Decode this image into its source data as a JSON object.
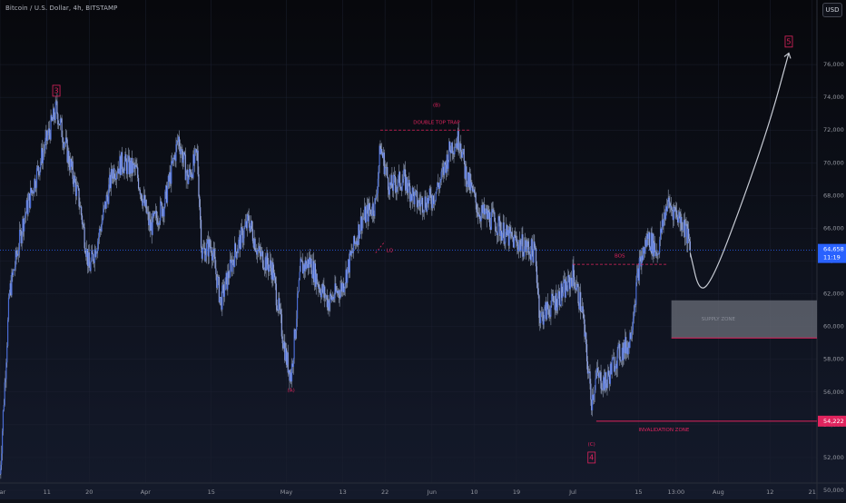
{
  "header": {
    "symbol_title": "Bitcoin / U.S. Dollar, 4h, BITSTAMP",
    "currency_button": "USD"
  },
  "price_labels": {
    "last_price": "64,658",
    "countdown": "11:19",
    "invalidation_price": "54,222"
  },
  "colors": {
    "background": "#0f1119",
    "candle": "#4a6cd4",
    "candle_wick": "#8f9bb3",
    "accent": "#e0245e",
    "last_price": "#2962ff",
    "grid": "#1c2030",
    "axis_text": "#9598a1",
    "zone_fill": "#6b6f7a",
    "projection": "#c7cbd4"
  },
  "chart_data": {
    "type": "candlestick",
    "ylim": [
      50000,
      78500
    ],
    "y_ticks": [
      50000,
      52000,
      54000,
      56000,
      58000,
      60000,
      62000,
      64000,
      66000,
      68000,
      70000,
      72000,
      74000,
      76000
    ],
    "y_tick_labels": [
      "50,000",
      "52,000",
      "54,000",
      "56,000",
      "58,000",
      "60,000",
      "62,000",
      "64,000",
      "66,000",
      "68,000",
      "70,000",
      "72,000",
      "74,000",
      "76,000"
    ],
    "x_range": [
      "2024-03-01",
      "2024-08-22"
    ],
    "x_ticks": [
      {
        "date": "2024-03-01",
        "label": "Mar"
      },
      {
        "date": "2024-03-11",
        "label": "11"
      },
      {
        "date": "2024-03-20",
        "label": "20"
      },
      {
        "date": "2024-04-01",
        "label": "Apr"
      },
      {
        "date": "2024-04-15",
        "label": "15"
      },
      {
        "date": "2024-05-01",
        "label": "May"
      },
      {
        "date": "2024-05-13",
        "label": "13"
      },
      {
        "date": "2024-05-22",
        "label": "22"
      },
      {
        "date": "2024-06-01",
        "label": "Jun"
      },
      {
        "date": "2024-06-10",
        "label": "10"
      },
      {
        "date": "2024-06-19",
        "label": "19"
      },
      {
        "date": "2024-07-01",
        "label": "Jul"
      },
      {
        "date": "2024-07-15",
        "label": "15"
      },
      {
        "date": "2024-07-23",
        "label": "13:00"
      },
      {
        "date": "2024-08-01",
        "label": "Aug"
      },
      {
        "date": "2024-08-12",
        "label": "12"
      },
      {
        "date": "2024-08-21",
        "label": "21"
      }
    ],
    "price_path": [
      [
        "2024-03-01",
        51000
      ],
      [
        "2024-03-03",
        62000
      ],
      [
        "2024-03-06",
        66500
      ],
      [
        "2024-03-08",
        68500
      ],
      [
        "2024-03-10",
        70500
      ],
      [
        "2024-03-13",
        73300
      ],
      [
        "2024-03-15",
        71000
      ],
      [
        "2024-03-18",
        67500
      ],
      [
        "2024-03-20",
        63500
      ],
      [
        "2024-03-22",
        65500
      ],
      [
        "2024-03-25",
        69500
      ],
      [
        "2024-03-27",
        70000
      ],
      [
        "2024-03-30",
        69500
      ],
      [
        "2024-04-02",
        66000
      ],
      [
        "2024-04-05",
        67500
      ],
      [
        "2024-04-08",
        71500
      ],
      [
        "2024-04-10",
        69000
      ],
      [
        "2024-04-12",
        70500
      ],
      [
        "2024-04-13",
        64500
      ],
      [
        "2024-04-15",
        65000
      ],
      [
        "2024-04-17",
        61500
      ],
      [
        "2024-04-20",
        64500
      ],
      [
        "2024-04-23",
        66500
      ],
      [
        "2024-04-25",
        64500
      ],
      [
        "2024-04-28",
        63500
      ],
      [
        "2024-05-01",
        58000
      ],
      [
        "2024-05-02",
        57000
      ],
      [
        "2024-05-04",
        63500
      ],
      [
        "2024-05-06",
        64000
      ],
      [
        "2024-05-08",
        62500
      ],
      [
        "2024-05-10",
        61500
      ],
      [
        "2024-05-13",
        62500
      ],
      [
        "2024-05-15",
        64500
      ],
      [
        "2024-05-17",
        66500
      ],
      [
        "2024-05-20",
        67500
      ],
      [
        "2024-05-21",
        71000
      ],
      [
        "2024-05-23",
        68500
      ],
      [
        "2024-05-26",
        69000
      ],
      [
        "2024-05-29",
        67500
      ],
      [
        "2024-06-01",
        67800
      ],
      [
        "2024-06-03",
        69000
      ],
      [
        "2024-06-05",
        71000
      ],
      [
        "2024-06-07",
        71500
      ],
      [
        "2024-06-08",
        69500
      ],
      [
        "2024-06-11",
        67000
      ],
      [
        "2024-06-14",
        66500
      ],
      [
        "2024-06-17",
        65500
      ],
      [
        "2024-06-20",
        65000
      ],
      [
        "2024-06-23",
        64500
      ],
      [
        "2024-06-24",
        60500
      ],
      [
        "2024-06-27",
        61500
      ],
      [
        "2024-06-30",
        62500
      ],
      [
        "2024-07-01",
        63200
      ],
      [
        "2024-07-03",
        61000
      ],
      [
        "2024-07-04",
        58000
      ],
      [
        "2024-07-05",
        55500
      ],
      [
        "2024-07-06",
        57000
      ],
      [
        "2024-07-08",
        56500
      ],
      [
        "2024-07-10",
        58000
      ],
      [
        "2024-07-13",
        59000
      ],
      [
        "2024-07-15",
        63500
      ],
      [
        "2024-07-17",
        65500
      ],
      [
        "2024-07-19",
        64500
      ],
      [
        "2024-07-21",
        67500
      ],
      [
        "2024-07-23",
        67000
      ],
      [
        "2024-07-25",
        66000
      ],
      [
        "2024-07-26",
        64658
      ]
    ],
    "annotations": [
      {
        "name": "wave-3-label",
        "text": "3",
        "date": "2024-03-13",
        "price": 74400,
        "boxed": true
      },
      {
        "name": "wave-A-label",
        "text": "(A)",
        "date": "2024-05-02",
        "price": 56100
      },
      {
        "name": "wave-B-label",
        "text": "(B)",
        "date": "2024-06-02",
        "price": 73500
      },
      {
        "name": "double-top-label",
        "text": "DOUBLE TOP TRAP",
        "date": "2024-06-02",
        "price": 72450
      },
      {
        "name": "lq-label",
        "text": "LQ",
        "date": "2024-05-23",
        "price": 64650
      },
      {
        "name": "bos-label",
        "text": "BOS",
        "date": "2024-07-11",
        "price": 64300
      },
      {
        "name": "supply-zone-label",
        "text": "SUPPLY ZONE",
        "date": "2024-08-01",
        "price": 60450
      },
      {
        "name": "invalidation-zone-label",
        "text": "INVALIDATION ZONE",
        "date": "2024-07-15",
        "price": 53700
      },
      {
        "name": "wave-C-label",
        "text": "(C)",
        "date": "2024-07-05",
        "price": 52800
      },
      {
        "name": "wave-4-label",
        "text": "4",
        "date": "2024-07-05",
        "price": 52000,
        "boxed": true
      },
      {
        "name": "wave-5-label",
        "text": "5",
        "date": "2024-08-16",
        "price": 77400,
        "boxed": true
      }
    ],
    "lines": {
      "double_top": {
        "from": "2024-05-21",
        "to": "2024-06-09",
        "price": 72000
      },
      "bos": {
        "from": "2024-07-01",
        "to": "2024-07-21",
        "price": 63800
      },
      "lq": {
        "from": "2024-05-20",
        "to": "2024-05-22",
        "price_from": 64500,
        "price_to": 65200
      },
      "invalidation": {
        "from": "2024-07-06",
        "to": "2024-08-22",
        "price": 54222
      },
      "last_price": {
        "price": 64658
      }
    },
    "zones": [
      {
        "name": "supply-zone",
        "from": "2024-07-22",
        "to": "2024-08-22",
        "low": 59300,
        "high": 61600
      }
    ],
    "projection": [
      [
        "2024-07-26",
        64500
      ],
      [
        "2024-07-28",
        62000
      ],
      [
        "2024-07-31",
        63000
      ],
      [
        "2024-08-06",
        67500
      ],
      [
        "2024-08-12",
        72500
      ],
      [
        "2024-08-16",
        76700
      ]
    ]
  }
}
